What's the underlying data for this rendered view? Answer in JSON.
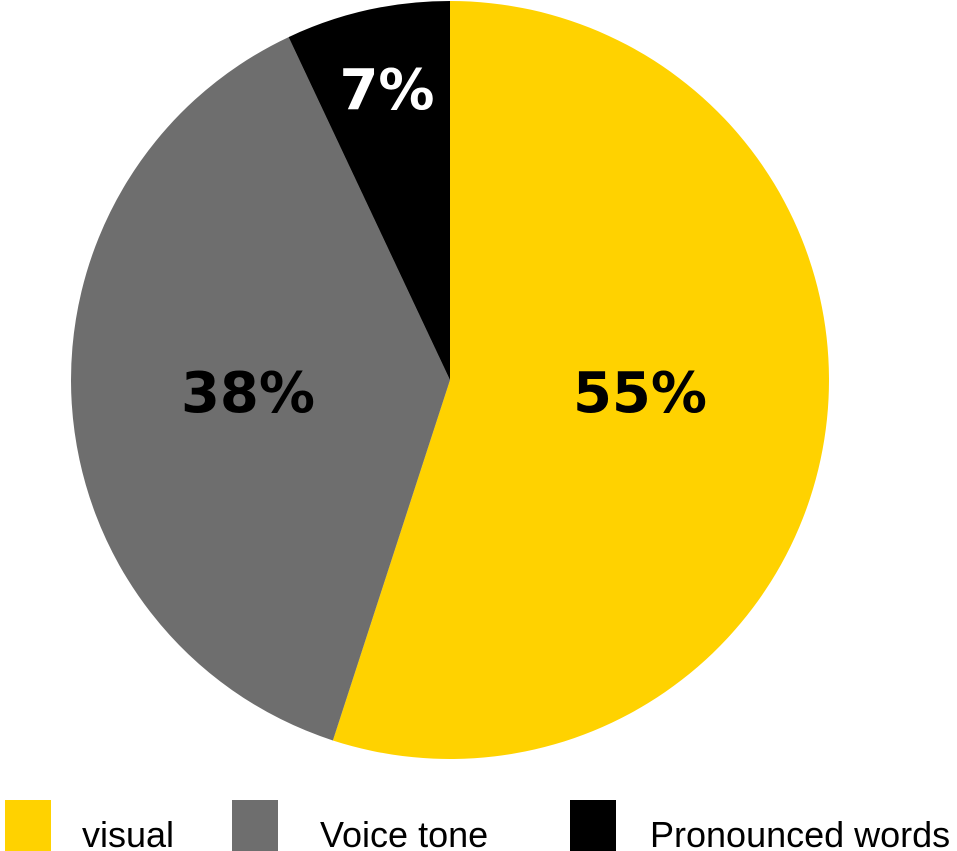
{
  "chart_data": {
    "type": "pie",
    "start_angle": "12 o'clock",
    "direction": "clockwise",
    "slices": [
      {
        "name": "visual",
        "value": 55,
        "label": "55%",
        "color": "#FFD200",
        "label_color": "#000000"
      },
      {
        "name": "Voice tone",
        "value": 38,
        "label": "38%",
        "color": "#6E6E6E",
        "label_color": "#000000"
      },
      {
        "name": "Pronounced words",
        "value": 7,
        "label": "7%",
        "color": "#000000",
        "label_color": "#FFFFFF"
      }
    ],
    "legend": {
      "placement": "bottom",
      "items": [
        "visual",
        "Voice tone",
        "Pronounced words"
      ]
    },
    "title": "",
    "units": "%"
  }
}
